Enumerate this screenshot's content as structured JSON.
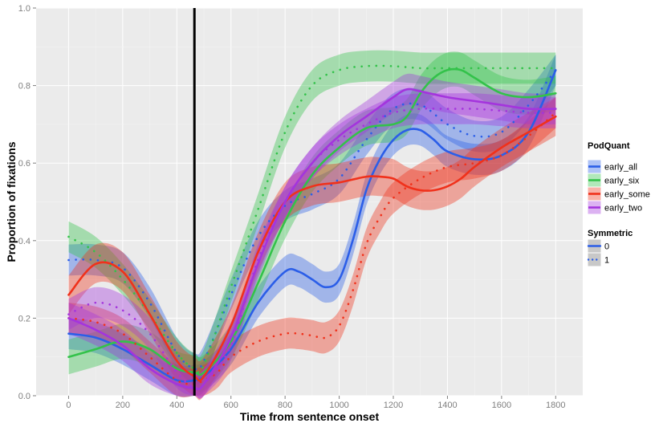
{
  "chart_data": {
    "type": "line",
    "xlabel": "Time from sentence onset",
    "ylabel": "Proportion of fixations",
    "xlim": [
      -120,
      1900
    ],
    "ylim": [
      0.0,
      1.0
    ],
    "x_ticks": [
      0,
      200,
      400,
      600,
      800,
      1000,
      1200,
      1400,
      1600,
      1800
    ],
    "x_tick_labels": [
      "0",
      "200",
      "400",
      "600",
      "800",
      "1000",
      "1200",
      "1400",
      "1600",
      "1800"
    ],
    "y_ticks": [
      0.0,
      0.2,
      0.4,
      0.6,
      0.8,
      1.0
    ],
    "y_tick_labels": [
      "0.0",
      "0.2",
      "0.4",
      "0.6",
      "0.8",
      "1.0"
    ],
    "grid": true,
    "background": "#ebebeb",
    "vline_x": 465,
    "legend_position": "right",
    "legend": {
      "color_title": "PodQuant",
      "color_entries": [
        {
          "label": "early_all",
          "color": "#2b5ee8"
        },
        {
          "label": "early_six",
          "color": "#33c24a"
        },
        {
          "label": "early_some",
          "color": "#f0311b"
        },
        {
          "label": "early_two",
          "color": "#a434dd"
        }
      ],
      "linetype_title": "Symmetric",
      "linetype_entries": [
        {
          "label": "0",
          "linetype": "solid"
        },
        {
          "label": "1",
          "linetype": "dotted"
        }
      ]
    },
    "series": [
      {
        "group": "early_all",
        "symmetric": "0",
        "color": "#2b5ee8",
        "linetype": "solid",
        "band": 0.04,
        "x": [
          0,
          100,
          200,
          300,
          400,
          465,
          500,
          600,
          700,
          800,
          850,
          900,
          950,
          1000,
          1050,
          1100,
          1150,
          1200,
          1250,
          1300,
          1350,
          1400,
          1500,
          1600,
          1700,
          1800
        ],
        "y": [
          0.16,
          0.15,
          0.12,
          0.08,
          0.04,
          0.04,
          0.05,
          0.12,
          0.24,
          0.32,
          0.32,
          0.3,
          0.28,
          0.3,
          0.4,
          0.53,
          0.61,
          0.66,
          0.685,
          0.685,
          0.66,
          0.63,
          0.61,
          0.62,
          0.68,
          0.84
        ]
      },
      {
        "group": "early_all",
        "symmetric": "1",
        "color": "#2b5ee8",
        "linetype": "dotted",
        "band": 0.04,
        "x": [
          0,
          100,
          200,
          300,
          400,
          465,
          500,
          600,
          700,
          800,
          900,
          1000,
          1100,
          1200,
          1300,
          1400,
          1500,
          1600,
          1700,
          1800
        ],
        "y": [
          0.35,
          0.35,
          0.33,
          0.24,
          0.11,
          0.07,
          0.09,
          0.26,
          0.41,
          0.49,
          0.52,
          0.56,
          0.66,
          0.74,
          0.75,
          0.7,
          0.67,
          0.68,
          0.75,
          0.84
        ]
      },
      {
        "group": "early_six",
        "symmetric": "0",
        "color": "#33c24a",
        "linetype": "solid",
        "band": 0.045,
        "x": [
          0,
          100,
          200,
          300,
          400,
          465,
          500,
          600,
          700,
          800,
          900,
          1000,
          1100,
          1200,
          1250,
          1300,
          1350,
          1400,
          1450,
          1500,
          1600,
          1700,
          1800
        ],
        "y": [
          0.1,
          0.12,
          0.14,
          0.12,
          0.07,
          0.06,
          0.06,
          0.14,
          0.29,
          0.45,
          0.57,
          0.64,
          0.69,
          0.7,
          0.72,
          0.78,
          0.82,
          0.84,
          0.84,
          0.82,
          0.78,
          0.77,
          0.78
        ]
      },
      {
        "group": "early_six",
        "symmetric": "1",
        "color": "#33c24a",
        "linetype": "dotted",
        "band": 0.04,
        "x": [
          0,
          100,
          200,
          300,
          400,
          465,
          500,
          600,
          700,
          800,
          900,
          1000,
          1100,
          1200,
          1300,
          1400,
          1500,
          1600,
          1700,
          1800
        ],
        "y": [
          0.41,
          0.37,
          0.3,
          0.21,
          0.11,
          0.07,
          0.08,
          0.28,
          0.48,
          0.68,
          0.8,
          0.84,
          0.85,
          0.85,
          0.845,
          0.845,
          0.845,
          0.845,
          0.845,
          0.845
        ]
      },
      {
        "group": "early_some",
        "symmetric": "0",
        "color": "#f0311b",
        "linetype": "solid",
        "band": 0.05,
        "x": [
          0,
          100,
          200,
          300,
          400,
          465,
          500,
          600,
          700,
          800,
          900,
          1000,
          1100,
          1150,
          1200,
          1250,
          1300,
          1350,
          1400,
          1450,
          1500,
          1600,
          1700,
          1800
        ],
        "y": [
          0.26,
          0.34,
          0.32,
          0.21,
          0.09,
          0.05,
          0.05,
          0.18,
          0.37,
          0.5,
          0.54,
          0.55,
          0.565,
          0.565,
          0.56,
          0.54,
          0.53,
          0.53,
          0.54,
          0.56,
          0.59,
          0.64,
          0.68,
          0.72
        ]
      },
      {
        "group": "early_some",
        "symmetric": "1",
        "color": "#f0311b",
        "linetype": "dotted",
        "band": 0.04,
        "x": [
          0,
          100,
          200,
          300,
          400,
          465,
          500,
          550,
          600,
          700,
          800,
          850,
          900,
          950,
          1000,
          1050,
          1100,
          1150,
          1200,
          1300,
          1400,
          1500,
          1600,
          1700,
          1800
        ],
        "y": [
          0.2,
          0.19,
          0.16,
          0.1,
          0.04,
          0.03,
          0.04,
          0.06,
          0.1,
          0.14,
          0.16,
          0.16,
          0.155,
          0.15,
          0.18,
          0.27,
          0.39,
          0.46,
          0.51,
          0.56,
          0.59,
          0.6,
          0.62,
          0.67,
          0.73
        ]
      },
      {
        "group": "early_two",
        "symmetric": "0",
        "color": "#a434dd",
        "linetype": "solid",
        "band": 0.04,
        "x": [
          0,
          100,
          200,
          300,
          400,
          465,
          500,
          600,
          700,
          800,
          900,
          1000,
          1100,
          1200,
          1250,
          1300,
          1400,
          1500,
          1600,
          1700,
          1800
        ],
        "y": [
          0.2,
          0.17,
          0.13,
          0.07,
          0.03,
          0.02,
          0.03,
          0.15,
          0.34,
          0.5,
          0.6,
          0.67,
          0.72,
          0.77,
          0.79,
          0.785,
          0.77,
          0.76,
          0.75,
          0.74,
          0.74
        ]
      },
      {
        "group": "early_two",
        "symmetric": "1",
        "color": "#a434dd",
        "linetype": "dotted",
        "band": 0.04,
        "x": [
          0,
          100,
          200,
          300,
          400,
          465,
          500,
          600,
          700,
          800,
          900,
          1000,
          1100,
          1200,
          1300,
          1400,
          1500,
          1600,
          1700,
          1800
        ],
        "y": [
          0.21,
          0.24,
          0.22,
          0.16,
          0.06,
          0.02,
          0.03,
          0.13,
          0.35,
          0.5,
          0.6,
          0.66,
          0.7,
          0.73,
          0.74,
          0.74,
          0.74,
          0.735,
          0.73,
          0.73
        ]
      }
    ]
  }
}
